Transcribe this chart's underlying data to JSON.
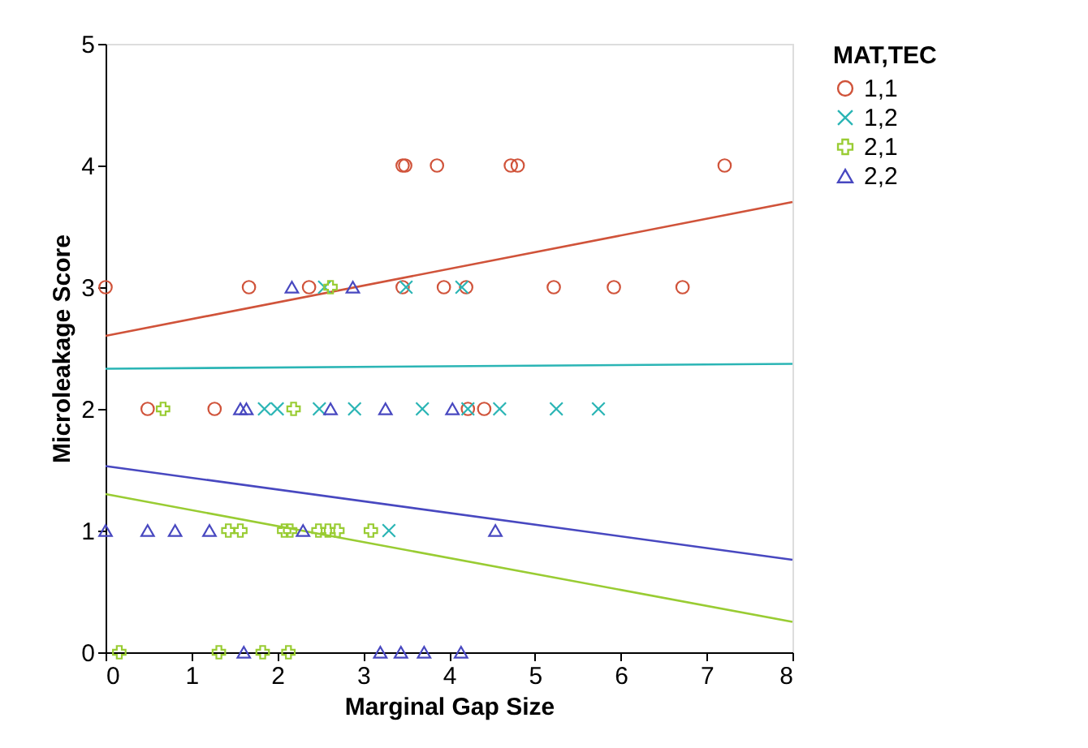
{
  "chart_data": {
    "type": "scatter",
    "xlabel": "Marginal Gap Size",
    "ylabel": "Microleakage Score",
    "legend_title": "MAT,TEC",
    "legend": "right",
    "grid": false,
    "xlim": [
      0,
      8
    ],
    "xticks": [
      0,
      1,
      2,
      3,
      4,
      5,
      6,
      7,
      8
    ],
    "ylim": [
      0,
      5
    ],
    "yticks": [
      0,
      1,
      2,
      3,
      4,
      5
    ],
    "series": [
      {
        "name": "1,1",
        "color": "#d0533a",
        "marker": "circle",
        "x": [
          3.46,
          3.49,
          3.86,
          4.72,
          4.8,
          7.21,
          0,
          1.67,
          2.37,
          3.46,
          3.94,
          4.2,
          5.22,
          5.92,
          6.72,
          0.49,
          1.27,
          4.22,
          4.41
        ],
        "values": [
          4,
          4,
          4,
          4,
          4,
          4,
          3,
          3,
          3,
          3,
          3,
          3,
          3,
          3,
          3,
          2,
          2,
          2,
          2
        ]
      },
      {
        "name": "1,2",
        "color": "#2bb5b5",
        "marker": "x",
        "x": [
          2.55,
          3.5,
          4.15,
          1.85,
          2.0,
          2.49,
          2.9,
          3.69,
          4.22,
          4.59,
          5.25,
          5.74,
          3.3
        ],
        "values": [
          3,
          3,
          3,
          2,
          2,
          2,
          2,
          2,
          2,
          2,
          2,
          2,
          1
        ]
      },
      {
        "name": "2,1",
        "color": "#99cc33",
        "marker": "cross",
        "x": [
          2.62,
          0.67,
          2.19,
          1.43,
          1.57,
          2.08,
          2.15,
          2.48,
          2.59,
          2.7,
          3.09,
          0.16,
          1.32,
          1.83,
          2.13
        ],
        "values": [
          3,
          2,
          2,
          1,
          1,
          1,
          1,
          1,
          1,
          1,
          1,
          0,
          0,
          0,
          0
        ]
      },
      {
        "name": "2,2",
        "color": "#4848c0",
        "marker": "triangle",
        "x": [
          2.17,
          2.88,
          1.57,
          1.64,
          2.62,
          3.26,
          4.04,
          0,
          0.49,
          0.81,
          1.21,
          2.3,
          4.54,
          1.61,
          3.2,
          3.44,
          3.71,
          4.14
        ],
        "values": [
          3,
          3,
          2,
          2,
          2,
          2,
          2,
          1,
          1,
          1,
          1,
          1,
          1,
          0,
          0,
          0,
          0,
          0
        ]
      },
      {
        "type": "line",
        "color": "#d0533a",
        "x": [
          0,
          8
        ],
        "values": [
          2.6,
          3.7
        ]
      },
      {
        "type": "line",
        "color": "#2bb5b5",
        "x": [
          0,
          8
        ],
        "values": [
          2.33,
          2.37
        ]
      },
      {
        "type": "line",
        "color": "#99cc33",
        "x": [
          0,
          8
        ],
        "values": [
          1.3,
          0.25
        ]
      },
      {
        "type": "line",
        "color": "#4848c0",
        "x": [
          0,
          8
        ],
        "values": [
          1.53,
          0.76
        ]
      }
    ]
  }
}
